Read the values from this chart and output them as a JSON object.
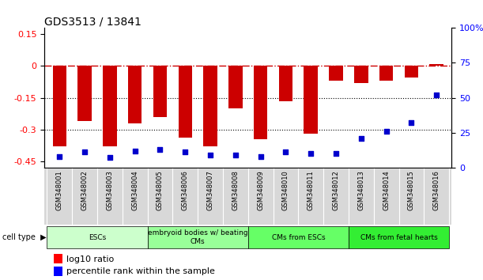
{
  "title": "GDS3513 / 13841",
  "samples": [
    "GSM348001",
    "GSM348002",
    "GSM348003",
    "GSM348004",
    "GSM348005",
    "GSM348006",
    "GSM348007",
    "GSM348008",
    "GSM348009",
    "GSM348010",
    "GSM348011",
    "GSM348012",
    "GSM348013",
    "GSM348014",
    "GSM348015",
    "GSM348016"
  ],
  "log10_ratio": [
    -0.38,
    -0.26,
    -0.38,
    -0.27,
    -0.24,
    -0.34,
    -0.38,
    -0.2,
    -0.345,
    -0.165,
    -0.32,
    -0.07,
    -0.08,
    -0.07,
    -0.055,
    0.01
  ],
  "percentile_rank": [
    8,
    11,
    7,
    12,
    13,
    11,
    9,
    9,
    8,
    11,
    10,
    10,
    21,
    26,
    32,
    52
  ],
  "cell_types": [
    {
      "label": "ESCs",
      "start": 0,
      "end": 3,
      "color": "#ccffcc"
    },
    {
      "label": "embryoid bodies w/ beating\nCMs",
      "start": 4,
      "end": 7,
      "color": "#99ff99"
    },
    {
      "label": "CMs from ESCs",
      "start": 8,
      "end": 11,
      "color": "#66ff66"
    },
    {
      "label": "CMs from fetal hearts",
      "start": 12,
      "end": 15,
      "color": "#33ee33"
    }
  ],
  "ylim_left": [
    -0.48,
    0.18
  ],
  "ylim_right": [
    0,
    100
  ],
  "yticks_left": [
    0.15,
    0.0,
    -0.15,
    -0.3,
    -0.45
  ],
  "yticks_right": [
    100,
    75,
    50,
    25,
    0
  ],
  "hline_red": 0.0,
  "dotted_lines": [
    -0.15,
    -0.3
  ],
  "bar_color": "#cc0000",
  "dot_color": "#0000cc",
  "bar_width": 0.55,
  "title_fontsize": 10,
  "tick_fontsize": 8,
  "label_fontsize": 7,
  "legend_fontsize": 8
}
